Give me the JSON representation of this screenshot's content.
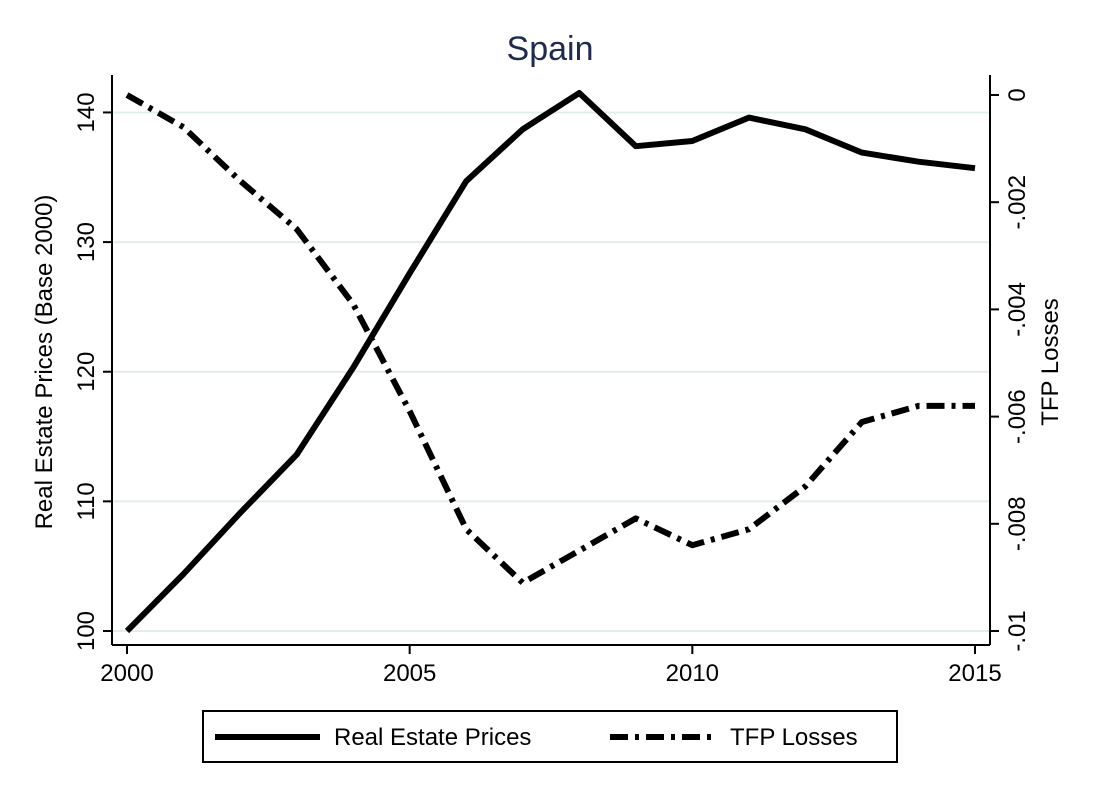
{
  "chart_data": {
    "type": "line",
    "title": "Spain",
    "xlabel": "",
    "ylabel": "Real Estate Prices (Base 2000)",
    "y2label": "TFP Losses",
    "xlim": [
      2000,
      2015
    ],
    "ylim": [
      100,
      141.5
    ],
    "y2lim": [
      -0.01,
      0
    ],
    "x_ticks": [
      2000,
      2005,
      2010,
      2015
    ],
    "x_tick_labels": [
      "2000",
      "2005",
      "2010",
      "2015"
    ],
    "y_ticks": [
      100,
      110,
      120,
      130,
      140
    ],
    "y_tick_labels": [
      "100",
      "110",
      "120",
      "130",
      "140"
    ],
    "y2_ticks": [
      0,
      -0.002,
      -0.004,
      -0.006,
      -0.008,
      -0.01
    ],
    "y2_tick_labels": [
      "0",
      "-.002",
      "-.004",
      "-.006",
      "-.008",
      "-.01"
    ],
    "grid": true,
    "legend_position": "bottom",
    "x": [
      2000,
      2001,
      2002,
      2003,
      2004,
      2005,
      2006,
      2007,
      2008,
      2009,
      2010,
      2011,
      2012,
      2013,
      2014,
      2015
    ],
    "series": [
      {
        "name": "Real Estate Prices",
        "axis": "left",
        "style": "solid",
        "color": "#000000",
        "values": [
          100.0,
          104.4,
          109.1,
          113.6,
          120.3,
          127.6,
          134.7,
          138.7,
          141.5,
          137.4,
          137.8,
          139.6,
          138.7,
          136.9,
          136.2,
          135.7
        ]
      },
      {
        "name": "TFP Losses",
        "axis": "right",
        "style": "dashdot",
        "color": "#000000",
        "values": [
          0.0,
          -0.0006,
          -0.0016,
          -0.0025,
          -0.0039,
          -0.0059,
          -0.0081,
          -0.0091,
          -0.0085,
          -0.0079,
          -0.0084,
          -0.0081,
          -0.0073,
          -0.0061,
          -0.0058,
          -0.0058
        ]
      }
    ]
  }
}
